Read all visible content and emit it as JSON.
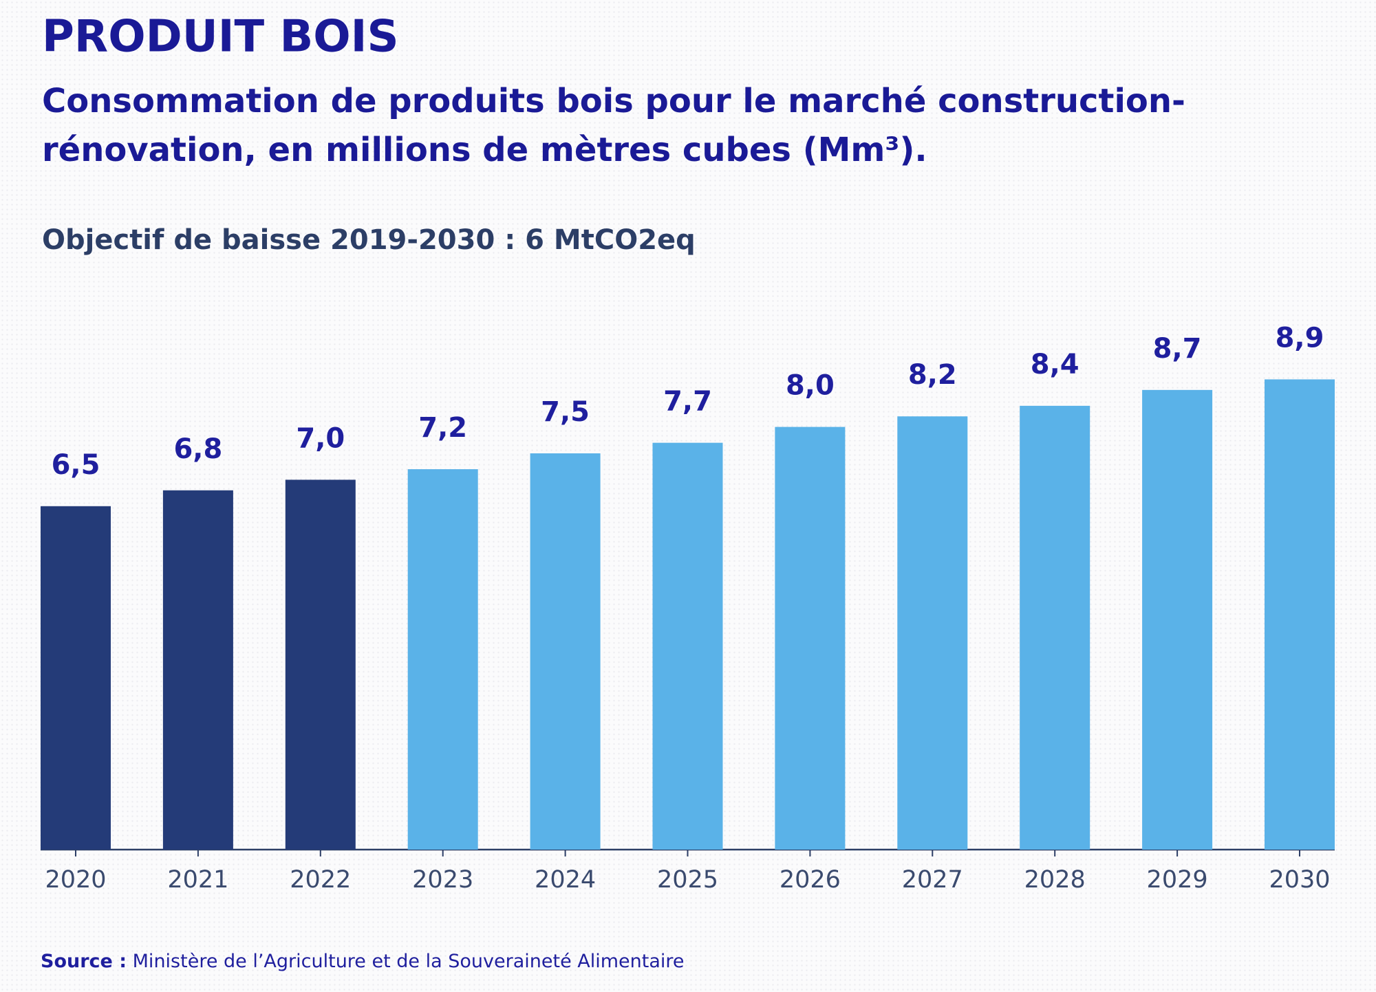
{
  "chart_data": {
    "type": "bar",
    "title": "PRODUIT BOIS",
    "subtitle": [
      "Consommation de produits bois pour le marché construction-",
      "rénovation, en millions de mètres cubes (Mm³)."
    ],
    "annotation": "Objectif de baisse 2019-2030 : 6 MtCO2eq",
    "categories": [
      "2020",
      "2021",
      "2022",
      "2023",
      "2024",
      "2025",
      "2026",
      "2027",
      "2028",
      "2029",
      "2030"
    ],
    "values": [
      6.5,
      6.8,
      7.0,
      7.2,
      7.5,
      7.7,
      8.0,
      8.2,
      8.4,
      8.7,
      8.9
    ],
    "value_labels": [
      "6,5",
      "6,8",
      "7,0",
      "7,2",
      "7,5",
      "7,7",
      "8,0",
      "8,2",
      "8,4",
      "8,7",
      "8,9"
    ],
    "colors": [
      "#243b78",
      "#243b78",
      "#243b78",
      "#5ab2e8",
      "#5ab2e8",
      "#5ab2e8",
      "#5ab2e8",
      "#5ab2e8",
      "#5ab2e8",
      "#5ab2e8",
      "#5ab2e8"
    ],
    "source_label": "Source :",
    "source": "Ministère de l’Agriculture et de la Souveraineté Alimentaire"
  }
}
